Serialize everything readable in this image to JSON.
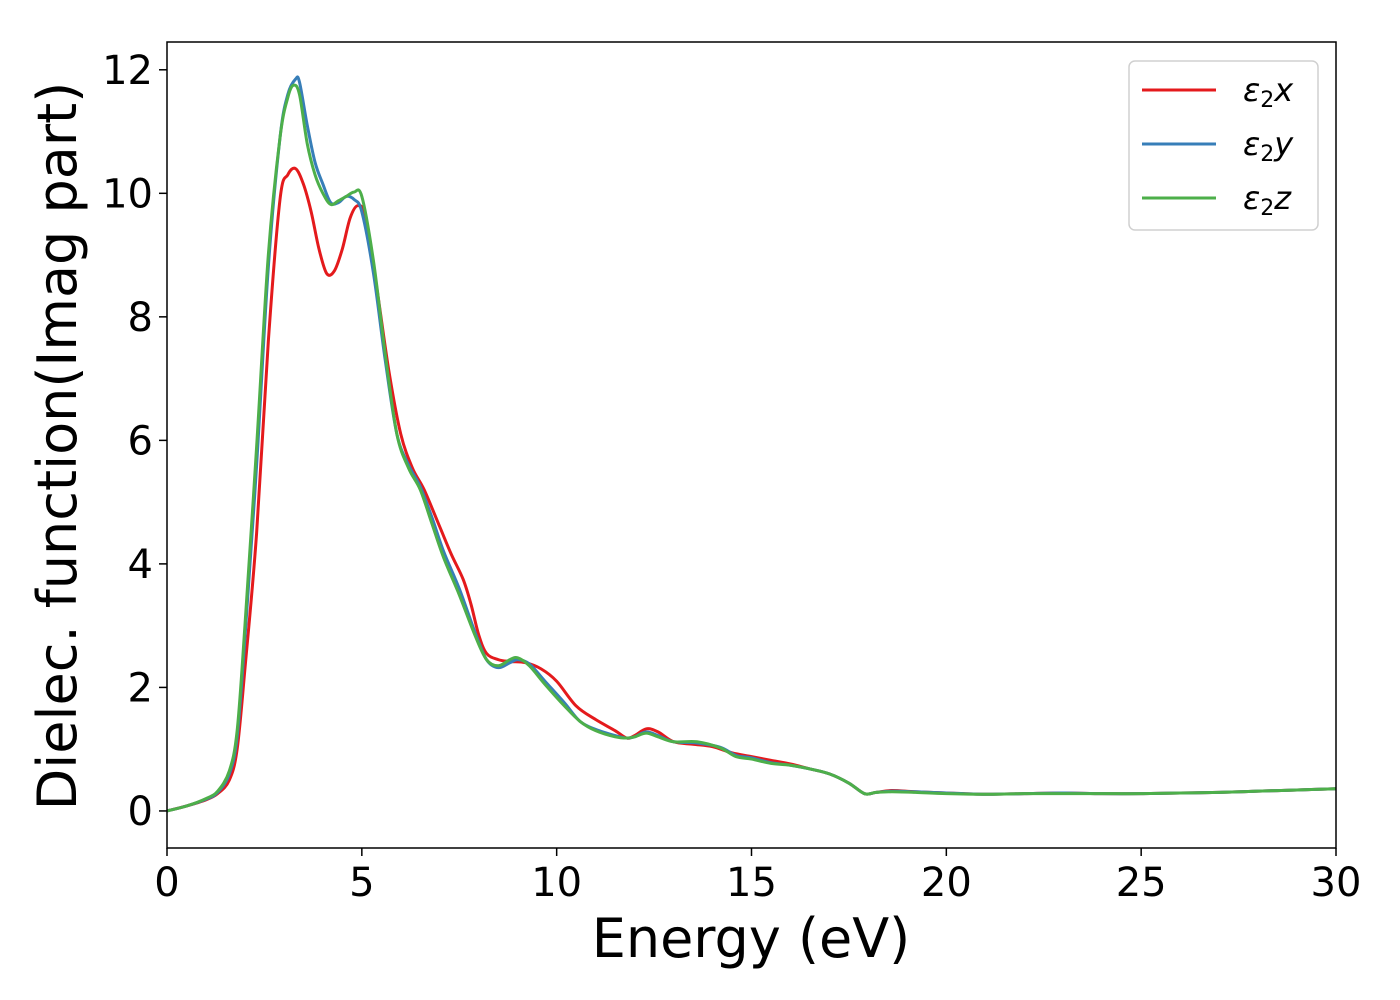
{
  "chart_data": {
    "type": "line",
    "xlabel": "Energy (eV)",
    "ylabel": "Dielec. function(Imag part)",
    "xlim": [
      0,
      30
    ],
    "ylim": [
      -0.6,
      12.45
    ],
    "xticks": [
      "0",
      "5",
      "10",
      "15",
      "20",
      "25",
      "30"
    ],
    "yticks": [
      "0",
      "2",
      "4",
      "6",
      "8",
      "10",
      "12"
    ],
    "grid": false,
    "legend_position": "top-right",
    "series": [
      {
        "name": "ε2x",
        "legend_base": "ε",
        "legend_sub": "2",
        "legend_var": "x",
        "color": "#e41a1c",
        "points": [
          [
            0,
            0
          ],
          [
            0.5,
            0.08
          ],
          [
            1.0,
            0.18
          ],
          [
            1.3,
            0.28
          ],
          [
            1.6,
            0.5
          ],
          [
            1.8,
            1.0
          ],
          [
            2.0,
            2.3
          ],
          [
            2.3,
            4.5
          ],
          [
            2.6,
            7.6
          ],
          [
            2.9,
            9.9
          ],
          [
            3.1,
            10.3
          ],
          [
            3.3,
            10.4
          ],
          [
            3.5,
            10.15
          ],
          [
            3.7,
            9.7
          ],
          [
            3.9,
            9.1
          ],
          [
            4.1,
            8.7
          ],
          [
            4.3,
            8.75
          ],
          [
            4.5,
            9.1
          ],
          [
            4.7,
            9.6
          ],
          [
            4.9,
            9.8
          ],
          [
            5.1,
            9.6
          ],
          [
            5.4,
            8.4
          ],
          [
            5.7,
            7.1
          ],
          [
            6.0,
            6.1
          ],
          [
            6.3,
            5.55
          ],
          [
            6.6,
            5.2
          ],
          [
            7.0,
            4.6
          ],
          [
            7.3,
            4.15
          ],
          [
            7.6,
            3.75
          ],
          [
            7.8,
            3.35
          ],
          [
            8.0,
            2.85
          ],
          [
            8.2,
            2.55
          ],
          [
            8.5,
            2.45
          ],
          [
            8.8,
            2.42
          ],
          [
            9.2,
            2.4
          ],
          [
            9.6,
            2.3
          ],
          [
            10.0,
            2.1
          ],
          [
            10.5,
            1.7
          ],
          [
            11.0,
            1.48
          ],
          [
            11.5,
            1.3
          ],
          [
            11.8,
            1.18
          ],
          [
            12.0,
            1.22
          ],
          [
            12.3,
            1.33
          ],
          [
            12.6,
            1.28
          ],
          [
            13.0,
            1.12
          ],
          [
            13.5,
            1.08
          ],
          [
            14.0,
            1.04
          ],
          [
            14.5,
            0.94
          ],
          [
            15.0,
            0.88
          ],
          [
            15.5,
            0.82
          ],
          [
            16.0,
            0.76
          ],
          [
            16.5,
            0.68
          ],
          [
            17.0,
            0.6
          ],
          [
            17.5,
            0.45
          ],
          [
            17.9,
            0.28
          ],
          [
            18.2,
            0.3
          ],
          [
            18.6,
            0.33
          ],
          [
            19.2,
            0.31
          ],
          [
            20.0,
            0.29
          ],
          [
            21.0,
            0.27
          ],
          [
            22.0,
            0.28
          ],
          [
            23.0,
            0.29
          ],
          [
            24.0,
            0.28
          ],
          [
            25.0,
            0.28
          ],
          [
            26.0,
            0.29
          ],
          [
            27.0,
            0.3
          ],
          [
            28.0,
            0.32
          ],
          [
            29.0,
            0.34
          ],
          [
            30.0,
            0.36
          ]
        ]
      },
      {
        "name": "ε2y",
        "legend_base": "ε",
        "legend_sub": "2",
        "legend_var": "y",
        "color": "#377eb8",
        "points": [
          [
            0,
            0
          ],
          [
            0.5,
            0.08
          ],
          [
            1.0,
            0.19
          ],
          [
            1.3,
            0.3
          ],
          [
            1.6,
            0.6
          ],
          [
            1.8,
            1.2
          ],
          [
            2.0,
            2.8
          ],
          [
            2.3,
            5.6
          ],
          [
            2.6,
            8.8
          ],
          [
            2.9,
            10.9
          ],
          [
            3.1,
            11.6
          ],
          [
            3.3,
            11.85
          ],
          [
            3.4,
            11.8
          ],
          [
            3.6,
            11.1
          ],
          [
            3.8,
            10.5
          ],
          [
            4.0,
            10.15
          ],
          [
            4.2,
            9.85
          ],
          [
            4.4,
            9.85
          ],
          [
            4.6,
            9.95
          ],
          [
            4.8,
            9.9
          ],
          [
            5.0,
            9.7
          ],
          [
            5.3,
            8.7
          ],
          [
            5.6,
            7.3
          ],
          [
            5.9,
            6.1
          ],
          [
            6.2,
            5.6
          ],
          [
            6.5,
            5.25
          ],
          [
            6.8,
            4.75
          ],
          [
            7.1,
            4.2
          ],
          [
            7.5,
            3.6
          ],
          [
            7.9,
            2.9
          ],
          [
            8.2,
            2.45
          ],
          [
            8.5,
            2.32
          ],
          [
            8.8,
            2.4
          ],
          [
            9.0,
            2.45
          ],
          [
            9.3,
            2.38
          ],
          [
            9.7,
            2.1
          ],
          [
            10.2,
            1.75
          ],
          [
            10.6,
            1.45
          ],
          [
            11.0,
            1.32
          ],
          [
            11.5,
            1.22
          ],
          [
            11.8,
            1.18
          ],
          [
            12.0,
            1.2
          ],
          [
            12.3,
            1.28
          ],
          [
            12.6,
            1.22
          ],
          [
            13.0,
            1.12
          ],
          [
            13.6,
            1.1
          ],
          [
            14.2,
            1.03
          ],
          [
            14.6,
            0.9
          ],
          [
            15.0,
            0.86
          ],
          [
            15.5,
            0.78
          ],
          [
            16.0,
            0.74
          ],
          [
            16.5,
            0.68
          ],
          [
            17.0,
            0.6
          ],
          [
            17.5,
            0.45
          ],
          [
            17.9,
            0.28
          ],
          [
            18.2,
            0.3
          ],
          [
            18.6,
            0.32
          ],
          [
            19.2,
            0.31
          ],
          [
            20.0,
            0.29
          ],
          [
            21.0,
            0.27
          ],
          [
            22.0,
            0.28
          ],
          [
            23.0,
            0.29
          ],
          [
            24.0,
            0.28
          ],
          [
            25.0,
            0.28
          ],
          [
            26.0,
            0.29
          ],
          [
            27.0,
            0.3
          ],
          [
            28.0,
            0.32
          ],
          [
            29.0,
            0.34
          ],
          [
            30.0,
            0.36
          ]
        ]
      },
      {
        "name": "ε2z",
        "legend_base": "ε",
        "legend_sub": "2",
        "legend_var": "z",
        "color": "#4daf4a",
        "points": [
          [
            0,
            0
          ],
          [
            0.5,
            0.08
          ],
          [
            1.0,
            0.2
          ],
          [
            1.3,
            0.32
          ],
          [
            1.6,
            0.65
          ],
          [
            1.8,
            1.3
          ],
          [
            2.0,
            3.0
          ],
          [
            2.3,
            5.9
          ],
          [
            2.6,
            9.0
          ],
          [
            2.9,
            10.9
          ],
          [
            3.1,
            11.55
          ],
          [
            3.25,
            11.75
          ],
          [
            3.4,
            11.6
          ],
          [
            3.6,
            10.8
          ],
          [
            3.8,
            10.3
          ],
          [
            4.0,
            10.0
          ],
          [
            4.2,
            9.82
          ],
          [
            4.4,
            9.88
          ],
          [
            4.6,
            9.95
          ],
          [
            4.8,
            10.02
          ],
          [
            5.0,
            9.95
          ],
          [
            5.3,
            8.9
          ],
          [
            5.6,
            7.4
          ],
          [
            5.9,
            6.1
          ],
          [
            6.2,
            5.55
          ],
          [
            6.5,
            5.2
          ],
          [
            6.8,
            4.65
          ],
          [
            7.1,
            4.1
          ],
          [
            7.5,
            3.5
          ],
          [
            7.9,
            2.85
          ],
          [
            8.2,
            2.45
          ],
          [
            8.5,
            2.35
          ],
          [
            8.8,
            2.45
          ],
          [
            9.0,
            2.48
          ],
          [
            9.3,
            2.35
          ],
          [
            9.7,
            2.05
          ],
          [
            10.2,
            1.7
          ],
          [
            10.6,
            1.45
          ],
          [
            11.0,
            1.3
          ],
          [
            11.5,
            1.2
          ],
          [
            11.8,
            1.18
          ],
          [
            12.0,
            1.2
          ],
          [
            12.3,
            1.26
          ],
          [
            12.6,
            1.2
          ],
          [
            13.0,
            1.12
          ],
          [
            13.6,
            1.12
          ],
          [
            14.2,
            1.02
          ],
          [
            14.6,
            0.88
          ],
          [
            15.0,
            0.84
          ],
          [
            15.5,
            0.77
          ],
          [
            16.0,
            0.74
          ],
          [
            16.5,
            0.68
          ],
          [
            17.0,
            0.6
          ],
          [
            17.5,
            0.45
          ],
          [
            17.9,
            0.28
          ],
          [
            18.2,
            0.3
          ],
          [
            18.6,
            0.31
          ],
          [
            19.2,
            0.3
          ],
          [
            20.0,
            0.28
          ],
          [
            21.0,
            0.27
          ],
          [
            22.0,
            0.28
          ],
          [
            23.0,
            0.28
          ],
          [
            24.0,
            0.28
          ],
          [
            25.0,
            0.28
          ],
          [
            26.0,
            0.29
          ],
          [
            27.0,
            0.3
          ],
          [
            28.0,
            0.32
          ],
          [
            29.0,
            0.34
          ],
          [
            30.0,
            0.36
          ]
        ]
      }
    ]
  }
}
